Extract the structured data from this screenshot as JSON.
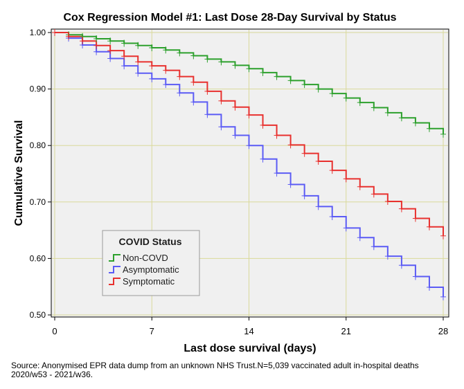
{
  "chart_data": {
    "type": "line",
    "title": "Cox Regression Model #1: Last Dose 28-Day Survival by Status",
    "xlabel": "Last dose survival (days)",
    "ylabel": "Cumulative Survival",
    "xlim": [
      0,
      28
    ],
    "ylim": [
      0.5,
      1.0
    ],
    "xticks": [
      0,
      7,
      14,
      21,
      28
    ],
    "xtick_labels": [
      "0",
      "7",
      "14",
      "21",
      "28"
    ],
    "yticks": [
      0.5,
      0.6,
      0.7,
      0.8,
      0.9,
      1.0
    ],
    "ytick_labels": [
      "0.50",
      "0.60",
      "0.70",
      "0.80",
      "0.90",
      "1.00"
    ],
    "grid": true,
    "step": true,
    "x": [
      0,
      1,
      2,
      3,
      4,
      5,
      6,
      7,
      8,
      9,
      10,
      11,
      12,
      13,
      14,
      15,
      16,
      17,
      18,
      19,
      20,
      21,
      22,
      23,
      24,
      25,
      26,
      27,
      28
    ],
    "series": [
      {
        "name": "Non-COVD",
        "color": "#2ca02c",
        "values": [
          1.0,
          0.996,
          0.993,
          0.989,
          0.985,
          0.981,
          0.977,
          0.973,
          0.969,
          0.964,
          0.959,
          0.953,
          0.948,
          0.942,
          0.936,
          0.929,
          0.922,
          0.915,
          0.908,
          0.9,
          0.892,
          0.884,
          0.876,
          0.867,
          0.858,
          0.849,
          0.84,
          0.83,
          0.82
        ]
      },
      {
        "name": "Asymptomatic",
        "color": "#5b5bf5",
        "values": [
          1.0,
          0.99,
          0.978,
          0.966,
          0.954,
          0.941,
          0.928,
          0.918,
          0.908,
          0.893,
          0.877,
          0.855,
          0.833,
          0.818,
          0.8,
          0.776,
          0.751,
          0.731,
          0.711,
          0.692,
          0.674,
          0.654,
          0.637,
          0.621,
          0.604,
          0.588,
          0.568,
          0.549,
          0.532
        ]
      },
      {
        "name": "Symptomatic",
        "color": "#e8302e",
        "values": [
          1.0,
          0.993,
          0.985,
          0.977,
          0.968,
          0.958,
          0.948,
          0.941,
          0.933,
          0.922,
          0.912,
          0.896,
          0.879,
          0.868,
          0.854,
          0.836,
          0.818,
          0.801,
          0.786,
          0.772,
          0.756,
          0.741,
          0.727,
          0.714,
          0.701,
          0.688,
          0.671,
          0.656,
          0.64
        ]
      }
    ],
    "censor_marks": true,
    "legend": {
      "title": "COVID Status",
      "position": "lower-left"
    }
  },
  "source": "Source: Anonymised EPR data dump from an unknown NHS Trust.N=5,039 vaccinated adult in-hospital deaths 2020/w53 - 2021/w36.",
  "colors": {
    "plot_bg": "#f0f0f0",
    "grid": "#d9d99a"
  }
}
